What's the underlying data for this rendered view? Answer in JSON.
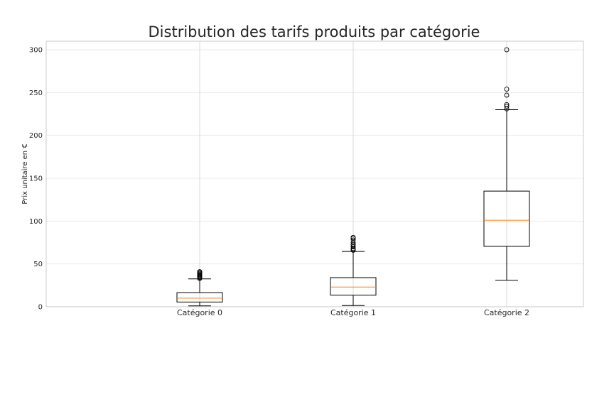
{
  "chart_data": {
    "type": "boxplot",
    "title": "Distribution des tarifs produits par catégorie",
    "xlabel": "",
    "ylabel": "Prix unitaire en €",
    "ylim": [
      0,
      310
    ],
    "yticks": [
      0,
      50,
      100,
      150,
      200,
      250,
      300
    ],
    "grid": true,
    "series": [
      {
        "category": "Catégorie 0",
        "whisker_low": 1,
        "q1": 5.5,
        "median": 10,
        "q3": 16.5,
        "whisker_high": 32.5,
        "outliers": [
          33,
          34,
          35,
          36,
          37,
          38,
          39,
          40,
          41
        ]
      },
      {
        "category": "Catégorie 1",
        "whisker_low": 1.5,
        "q1": 13.5,
        "median": 23,
        "q3": 34,
        "whisker_high": 64.5,
        "outliers": [
          66,
          67,
          68,
          70,
          72,
          73,
          75,
          78,
          80,
          81
        ]
      },
      {
        "category": "Catégorie 2",
        "whisker_low": 31,
        "q1": 70.5,
        "median": 101,
        "q3": 135,
        "whisker_high": 230,
        "outliers": [
          231,
          234,
          236,
          247,
          254,
          300
        ]
      }
    ],
    "colors": {
      "box": "#000000",
      "median": "#ff7f0e",
      "grid": "#e6e6e6",
      "frame": "#bfbfbf"
    }
  }
}
